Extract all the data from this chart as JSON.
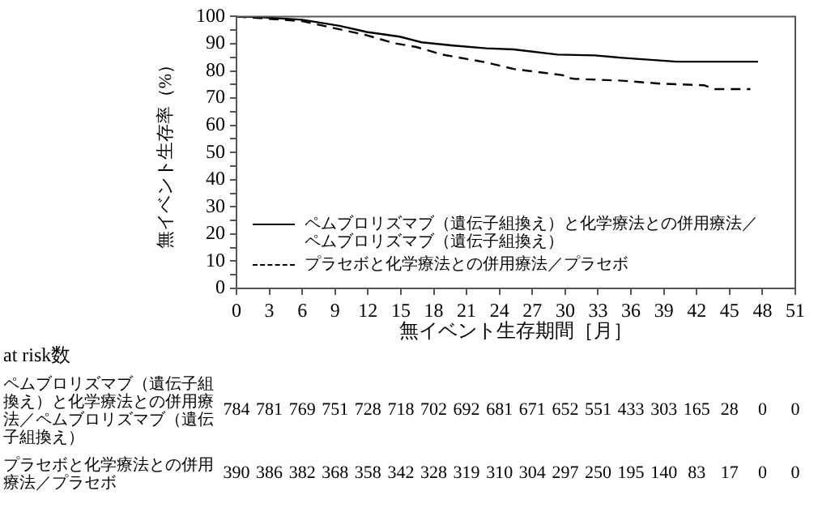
{
  "chart_data": {
    "type": "line",
    "ylabel": "無イベント生存率（%）",
    "xlabel": "無イベント生存期間［月］",
    "xlim": [
      0,
      51
    ],
    "xticks": [
      0,
      3,
      6,
      9,
      12,
      15,
      18,
      21,
      24,
      27,
      30,
      33,
      36,
      39,
      42,
      45,
      48,
      51
    ],
    "ylim": [
      0,
      100
    ],
    "yticks": [
      0,
      {
        "value": 5,
        "label": null
      },
      10,
      {
        "value": 15,
        "label": null
      },
      20,
      {
        "value": 25,
        "label": null
      },
      30,
      {
        "value": 35,
        "label": null
      },
      40,
      {
        "value": 45,
        "label": null
      },
      50,
      {
        "value": 55,
        "label": null
      },
      60,
      {
        "value": 65,
        "label": null
      },
      70,
      {
        "value": 75,
        "label": null
      },
      80,
      {
        "value": 85,
        "label": null
      },
      90,
      {
        "value": 95,
        "label": null
      },
      100
    ],
    "grid": false,
    "legend": "bottom left",
    "series": [
      {
        "name": "ペムブロリズマブ（遺伝子組換え）と化学療法との併用療法／ペムブロリズマブ（遺伝子組換え）",
        "color": "#000000",
        "line_style": "solid",
        "x": [
          0,
          2,
          6,
          9.4,
          11.9,
          14.9,
          16.9,
          19.8,
          22.8,
          25.3,
          29.3,
          32.7,
          35.2,
          40.2,
          47.6
        ],
        "values": [
          100,
          99.8,
          98.8,
          96.6,
          94.3,
          92.6,
          90.5,
          89.3,
          88.3,
          87.9,
          86,
          85.7,
          84.8,
          83.4,
          83.4
        ]
      },
      {
        "name": "プラセボと化学療法との併用療法／プラセボ",
        "color": "#000000",
        "line_style": "dashed",
        "x": [
          0,
          6,
          9.4,
          11.9,
          14.4,
          16.4,
          18.8,
          22.8,
          25.3,
          29.8,
          30,
          30.8,
          35.2,
          38.7,
          42.7,
          43.7,
          46.9
        ],
        "values": [
          100,
          98.3,
          95.3,
          93.1,
          90.2,
          88.8,
          86,
          83.1,
          80.7,
          78.4,
          77.6,
          77.1,
          76.4,
          75.3,
          74.7,
          73.3,
          73.3
        ]
      }
    ],
    "annotations": [
      "at risk数",
      "ペムブロリズマブ（遺伝子組換え）と化学療法との併用療法／ペムブロリズマブ（遺伝子組換え）",
      "784 781 769 751 728 718 702 692 681 671 652 551 433 303 165 28 0 0",
      "プラセボと化学療法との併用療法／プラセボ",
      "390 386 382 368 358 342 328 319 310 304 297 250 195 140 83 17 0 0"
    ]
  }
}
